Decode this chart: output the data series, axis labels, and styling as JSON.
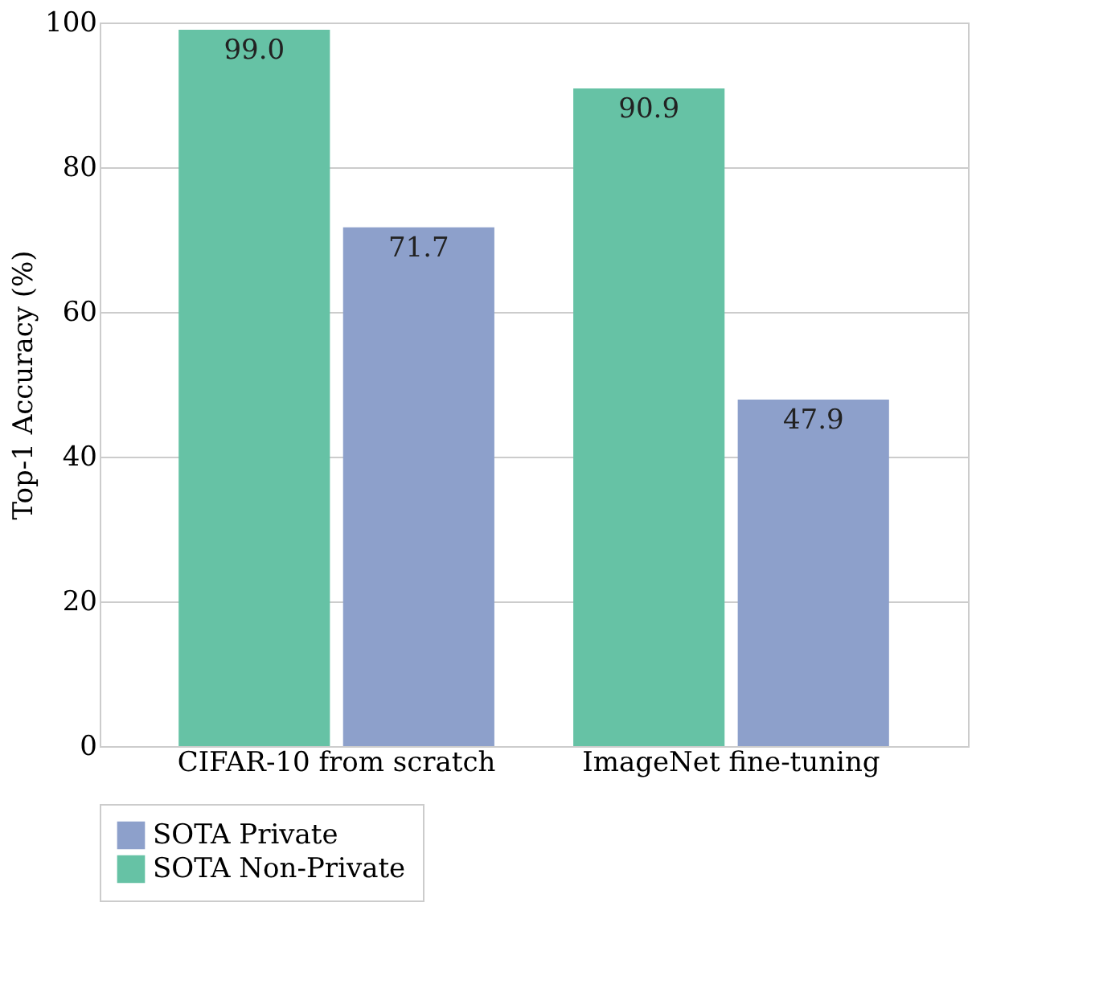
{
  "chart_data": {
    "type": "bar",
    "ylabel": "Top-1 Accuracy (%)",
    "categories": [
      "CIFAR-10 from scratch",
      "ImageNet fine-tuning"
    ],
    "series": [
      {
        "name": "SOTA Non-Private",
        "color": "#66c2a5",
        "values": [
          99.0,
          90.9
        ],
        "value_labels": [
          "99.0",
          "90.9"
        ]
      },
      {
        "name": "SOTA Private",
        "color": "#8da0cb",
        "values": [
          71.7,
          47.9
        ],
        "value_labels": [
          "71.7",
          "47.9"
        ]
      }
    ],
    "ylim": [
      0,
      100
    ],
    "yticks": [
      0,
      20,
      40,
      60,
      80,
      100
    ],
    "grid": "y",
    "legend": "bottom"
  }
}
